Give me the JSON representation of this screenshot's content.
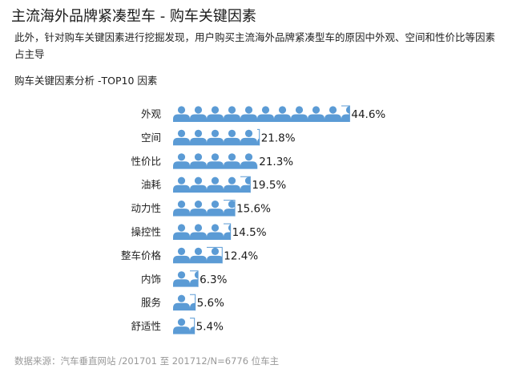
{
  "header": {
    "title": "主流海外品牌紧凑型车 - 购车关键因素",
    "description": "此外，针对购车关键因素进行挖掘发现，用户购买主流海外品牌紧凑型车的原因中外观、空间和性价比等因素占主导"
  },
  "chart_data": {
    "type": "bar",
    "title": "购车关键因素分析 -TOP10 因素",
    "orientation": "horizontal",
    "mark": "person-icon-pictogram",
    "categories": [
      "外观",
      "空间",
      "性价比",
      "油耗",
      "动力性",
      "操控性",
      "整车价格",
      "内饰",
      "服务",
      "舒适性"
    ],
    "values": [
      44.6,
      21.8,
      21.3,
      19.5,
      15.6,
      14.5,
      12.4,
      6.3,
      5.6,
      5.4
    ],
    "value_labels": [
      "44.6%",
      "21.8%",
      "21.3%",
      "19.5%",
      "15.6%",
      "14.5%",
      "12.4%",
      "6.3%",
      "5.6%",
      "5.4%"
    ],
    "unit": "%",
    "percent_per_icon": 4.25,
    "bar_color": "#5b9bd5",
    "xlabel": "",
    "ylabel": "",
    "grid": false,
    "legend": "none"
  },
  "footer": {
    "source": "数据来源：汽车垂直网站 /201701 至 201712/N=6776 位车主"
  }
}
